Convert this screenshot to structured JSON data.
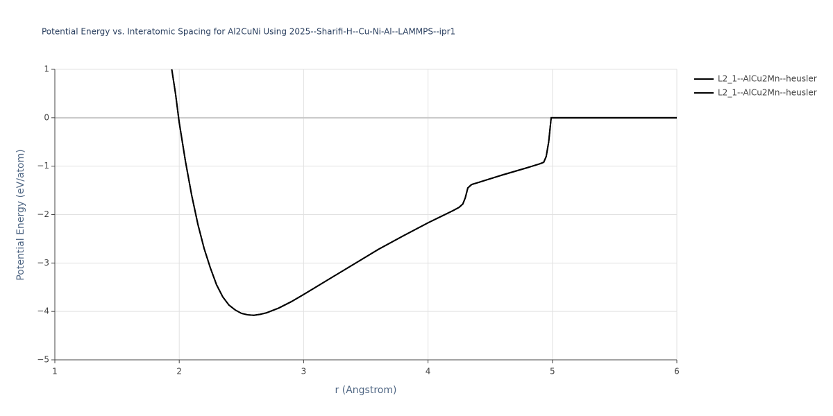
{
  "chart_data": {
    "type": "line",
    "title": "Potential Energy vs. Interatomic Spacing for Al2CuNi Using 2025--Sharifi-H--Cu-Ni-Al--LAMMPS--ipr1",
    "x_label": "r (Angstrom)",
    "y_label": "Potential Energy (eV/atom)",
    "xlim": [
      1,
      6
    ],
    "xticks": [
      1,
      2,
      3,
      4,
      5,
      6
    ],
    "ylim": [
      -5,
      1
    ],
    "yticks": [
      {
        "value": -5,
        "label": "−5"
      },
      {
        "value": -4,
        "label": "−4"
      },
      {
        "value": -3,
        "label": "−3"
      },
      {
        "value": -2,
        "label": "−2"
      },
      {
        "value": -1,
        "label": "−1"
      },
      0,
      1
    ],
    "grid": true,
    "legend": "right",
    "x": [
      1.94,
      1.97,
      2.0,
      2.05,
      2.1,
      2.15,
      2.2,
      2.25,
      2.3,
      2.35,
      2.4,
      2.45,
      2.5,
      2.55,
      2.6,
      2.65,
      2.7,
      2.8,
      2.9,
      3.0,
      3.2,
      3.4,
      3.6,
      3.8,
      4.0,
      4.2,
      4.25,
      4.28,
      4.3,
      4.32,
      4.35,
      4.4,
      4.6,
      4.8,
      4.9,
      4.93,
      4.95,
      4.97,
      4.99,
      5.0,
      6.0
    ],
    "series": [
      {
        "name": "L2_1--AlCu2Mn--heusler",
        "color": "#000000",
        "values": [
          1.0,
          0.5,
          -0.1,
          -0.9,
          -1.6,
          -2.2,
          -2.7,
          -3.1,
          -3.45,
          -3.7,
          -3.87,
          -3.97,
          -4.04,
          -4.07,
          -4.08,
          -4.06,
          -4.03,
          -3.93,
          -3.8,
          -3.65,
          -3.34,
          -3.03,
          -2.72,
          -2.44,
          -2.17,
          -1.92,
          -1.85,
          -1.78,
          -1.65,
          -1.45,
          -1.38,
          -1.34,
          -1.18,
          -1.03,
          -0.95,
          -0.92,
          -0.8,
          -0.5,
          0.0,
          0.0,
          0.0
        ]
      },
      {
        "name": "L2_1--AlCu2Mn--heusler",
        "color": "#000000",
        "values": [
          1.0,
          0.5,
          -0.1,
          -0.9,
          -1.6,
          -2.2,
          -2.7,
          -3.1,
          -3.45,
          -3.7,
          -3.87,
          -3.97,
          -4.04,
          -4.07,
          -4.08,
          -4.06,
          -4.03,
          -3.93,
          -3.8,
          -3.65,
          -3.34,
          -3.03,
          -2.72,
          -2.44,
          -2.17,
          -1.92,
          -1.85,
          -1.78,
          -1.65,
          -1.45,
          -1.38,
          -1.34,
          -1.18,
          -1.03,
          -0.95,
          -0.92,
          -0.8,
          -0.5,
          0.0,
          0.0,
          0.0
        ]
      }
    ]
  }
}
